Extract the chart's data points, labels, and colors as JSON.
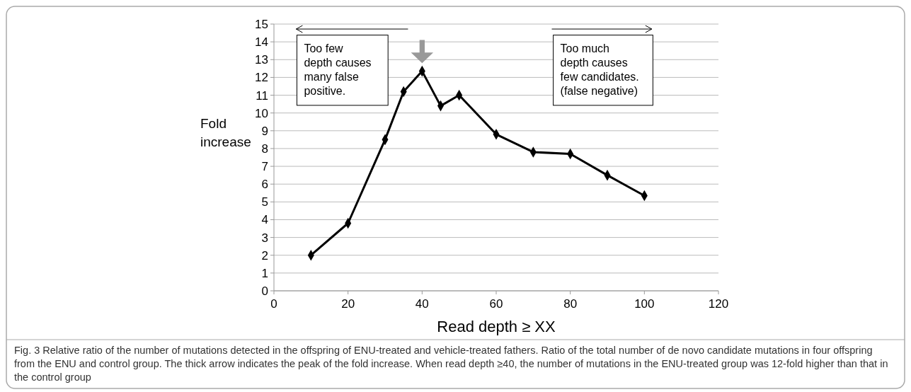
{
  "chart_data": {
    "type": "line",
    "xlabel": "Read depth ≥ XX",
    "ylabel": "Fold increase",
    "x": [
      10,
      20,
      30,
      35,
      40,
      45,
      50,
      60,
      70,
      80,
      90,
      100
    ],
    "series": [
      {
        "color": "#000000",
        "values": [
          2.0,
          3.8,
          8.5,
          11.2,
          12.35,
          10.4,
          11.0,
          8.8,
          7.8,
          7.7,
          6.5,
          5.35
        ]
      }
    ],
    "xlim": [
      0,
      120
    ],
    "xticks": [
      0,
      20,
      40,
      60,
      80,
      100,
      120
    ],
    "ylim": [
      0,
      15
    ],
    "yticks": [
      0,
      1,
      2,
      3,
      4,
      5,
      6,
      7,
      8,
      9,
      10,
      11,
      12,
      13,
      14,
      15
    ],
    "grid": "y",
    "marker": "diamond",
    "annotations": [
      "Too few\ndepth causes\nmany false\npositive.",
      "Too much\ndepth causes\nfew candidates.\n(false negative)",
      "Fig. 3 Relative ratio of the number of mutations detected in the offspring of ENU-treated and vehicle-treated fathers. Ratio of the total number of de novo candidate mutations in four offspring from the ENU and control group. The thick arrow indicates the peak of the fold increase. When read depth ≥40, the number of mutations in the ENU-treated group was 12-fold higher than that in the control group"
    ]
  }
}
